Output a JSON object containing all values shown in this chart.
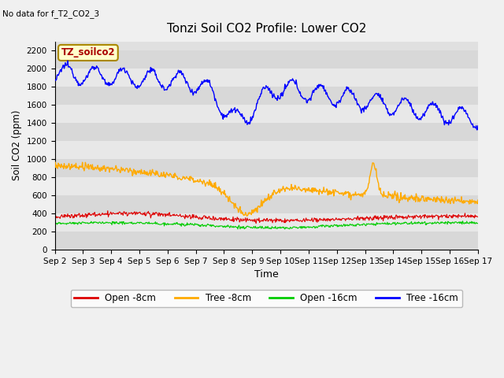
{
  "title": "Tonzi Soil CO2 Profile: Lower CO2",
  "subtitle": "No data for f_T2_CO2_3",
  "xlabel": "Time",
  "ylabel": "Soil CO2 (ppm)",
  "legend_label": "TZ_soilco2",
  "ylim": [
    0,
    2300
  ],
  "yticks": [
    0,
    200,
    400,
    600,
    800,
    1000,
    1200,
    1400,
    1600,
    1800,
    2000,
    2200
  ],
  "bg_color": "#dcdcdc",
  "plot_bg_color": "#dcdcdc",
  "series_colors": {
    "open_8cm": "#dd0000",
    "tree_8cm": "#ffaa00",
    "open_16cm": "#00cc00",
    "tree_16cm": "#0000ff"
  },
  "legend_entries": [
    "Open -8cm",
    "Tree -8cm",
    "Open -16cm",
    "Tree -16cm"
  ],
  "band_colors": [
    "#d8d8d8",
    "#e8e8e8"
  ]
}
